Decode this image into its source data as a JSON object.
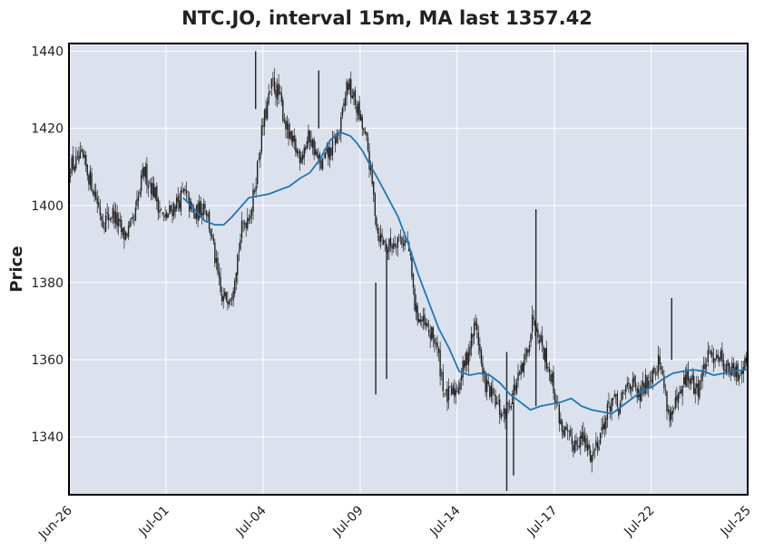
{
  "chart_data": {
    "type": "candlestick",
    "title": "NTC.JO, interval 15m, MA last 1357.42",
    "ylabel": "Price",
    "xlabel": "",
    "ylim": [
      1325,
      1442
    ],
    "yticks": [
      1340,
      1360,
      1380,
      1400,
      1420,
      1440
    ],
    "xticks": [
      "Jun-26",
      "Jul-01",
      "Jul-04",
      "Jul-09",
      "Jul-14",
      "Jul-17",
      "Jul-22",
      "Jul-25"
    ],
    "grid": true,
    "colors": {
      "background": "#dbe1ed",
      "grid": "#ffffff",
      "candle": "#222222",
      "ma_line": "#1f77b4"
    },
    "price_path": {
      "x": [
        0,
        2,
        3.5,
        5,
        6.5,
        8,
        9.5,
        11,
        12.5,
        14,
        15.5,
        17,
        18.5,
        20,
        21,
        22.5,
        24,
        25.5,
        27,
        28.5,
        30,
        31,
        32.5,
        34,
        35.5,
        37,
        38.5,
        40,
        41,
        42.5,
        44,
        45.5,
        47,
        48.5,
        50,
        51,
        52.5,
        54,
        55.5,
        57,
        58.5,
        60,
        61,
        62.5,
        64,
        65.5,
        67,
        68.5,
        70,
        71,
        72.5,
        74,
        75.5,
        77,
        78.5,
        80,
        81,
        82.5,
        84,
        85.5,
        87,
        88.5,
        90,
        91,
        92.5,
        94,
        95.5,
        97,
        98.5,
        100
      ],
      "y": [
        1410,
        1412,
        1405,
        1396,
        1398,
        1392,
        1395,
        1409,
        1404,
        1396,
        1400,
        1403,
        1397,
        1401,
        1392,
        1375,
        1378,
        1394,
        1400,
        1420,
        1432,
        1428,
        1417,
        1413,
        1418,
        1410,
        1414,
        1420,
        1432,
        1425,
        1415,
        1393,
        1389,
        1392,
        1390,
        1373,
        1368,
        1365,
        1350,
        1352,
        1360,
        1370,
        1355,
        1350,
        1345,
        1352,
        1358,
        1372,
        1362,
        1356,
        1343,
        1338,
        1340,
        1335,
        1342,
        1350,
        1347,
        1355,
        1350,
        1356,
        1360,
        1345,
        1350,
        1356,
        1352,
        1360,
        1362,
        1358,
        1356,
        1362
      ]
    },
    "ma": {
      "x": [
        16.8,
        18.5,
        20,
        21.5,
        22.8,
        24,
        25,
        26.5,
        28,
        29.5,
        31,
        32.5,
        34,
        35.5,
        37,
        38.5,
        40,
        41.5,
        42.5,
        43.3,
        44.2,
        45.5,
        47,
        48.5,
        50,
        51.5,
        53,
        54.5,
        56,
        57.5,
        59,
        60.5,
        62,
        63.5,
        65,
        66.5,
        68,
        69.5,
        71,
        72.5,
        74,
        75.5,
        77,
        78.5,
        80,
        81.5,
        83,
        84.5,
        86,
        87.5,
        89,
        90.5,
        92,
        93.5,
        95,
        96.5,
        98,
        99.5,
        100
      ],
      "y": [
        1402,
        1399,
        1396,
        1395,
        1395,
        1397,
        1399,
        1402,
        1402.5,
        1403,
        1404,
        1405,
        1407,
        1408.5,
        1412,
        1417,
        1419,
        1418,
        1416,
        1414,
        1411,
        1407,
        1402,
        1397,
        1390,
        1382,
        1375,
        1368,
        1363,
        1357,
        1356,
        1356.5,
        1356,
        1354,
        1351,
        1349,
        1347,
        1348,
        1348.5,
        1349,
        1350,
        1348,
        1347,
        1346.5,
        1346,
        1348,
        1350,
        1352,
        1353,
        1355,
        1356.5,
        1357,
        1357.42,
        1357,
        1356,
        1356.5,
        1357,
        1357.42,
        1357.42
      ]
    },
    "spikes": [
      {
        "x": 27.5,
        "high": 1440,
        "low": 1425
      },
      {
        "x": 36.8,
        "high": 1435,
        "low": 1420
      },
      {
        "x": 68.8,
        "high": 1399,
        "low": 1348
      },
      {
        "x": 64.5,
        "high": 1362,
        "low": 1326
      },
      {
        "x": 46.8,
        "high": 1390,
        "low": 1355
      },
      {
        "x": 45.2,
        "high": 1380,
        "low": 1351
      },
      {
        "x": 65.5,
        "high": 1349,
        "low": 1330
      },
      {
        "x": 88.8,
        "high": 1376,
        "low": 1360
      }
    ]
  }
}
